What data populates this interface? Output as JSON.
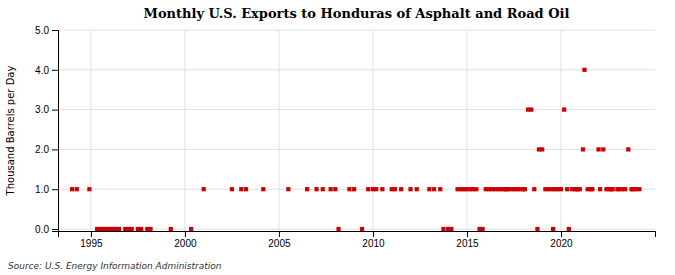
{
  "chart_data": {
    "type": "scatter",
    "title": "Monthly U.S. Exports to Honduras of Asphalt and Road Oil",
    "ylabel": "Thousand Barrels per Day",
    "source": "Source: U.S. Energy Information Administration",
    "color": "#cc0000",
    "marker": "square",
    "grid": true,
    "xlim": [
      1993.25,
      2025.0
    ],
    "ylim": [
      -0.05,
      5.0
    ],
    "xticks": [
      1995,
      2000,
      2005,
      2010,
      2015,
      2020
    ],
    "yticks": [
      {
        "value": 0.0,
        "label": "0.0"
      },
      {
        "value": 1.0,
        "label": "1.0"
      },
      {
        "value": 2.0,
        "label": "2.0"
      },
      {
        "value": 3.0,
        "label": "3.0"
      },
      {
        "value": 4.0,
        "label": "4.0"
      },
      {
        "value": 5.0,
        "label": "5.0"
      }
    ],
    "x": [
      1994.0,
      1994.25,
      1994.92,
      1995.33,
      1995.5,
      1995.67,
      1995.83,
      1996.0,
      1996.17,
      1996.33,
      1996.5,
      1996.83,
      1997.0,
      1997.17,
      1997.5,
      1997.67,
      1998.0,
      1998.17,
      1999.25,
      2000.33,
      2001.0,
      2002.5,
      2003.0,
      2003.25,
      2004.17,
      2005.5,
      2006.5,
      2007.0,
      2007.33,
      2007.75,
      2008.0,
      2008.17,
      2008.75,
      2009.0,
      2009.42,
      2009.75,
      2010.0,
      2010.17,
      2010.5,
      2011.0,
      2011.17,
      2011.5,
      2012.0,
      2012.33,
      2013.0,
      2013.25,
      2013.58,
      2013.75,
      2014.0,
      2014.17,
      2014.5,
      2014.67,
      2014.83,
      2015.0,
      2015.17,
      2015.33,
      2015.5,
      2015.67,
      2015.83,
      2016.0,
      2016.17,
      2016.33,
      2016.5,
      2016.67,
      2016.83,
      2017.0,
      2017.08,
      2017.17,
      2017.33,
      2017.5,
      2017.67,
      2017.83,
      2018.0,
      2018.08,
      2018.25,
      2018.42,
      2018.58,
      2018.75,
      2018.83,
      2019.0,
      2019.17,
      2019.33,
      2019.5,
      2019.58,
      2019.67,
      2019.83,
      2020.0,
      2020.17,
      2020.33,
      2020.42,
      2020.58,
      2020.75,
      2020.83,
      2020.92,
      2021.0,
      2021.17,
      2021.25,
      2021.42,
      2021.58,
      2021.67,
      2022.0,
      2022.08,
      2022.25,
      2022.42,
      2022.58,
      2022.67,
      2022.75,
      2023.0,
      2023.08,
      2023.25,
      2023.42,
      2023.58,
      2023.75,
      2023.83,
      2024.0,
      2024.17
    ],
    "values": [
      1.0,
      1.0,
      1.0,
      0.0,
      0.0,
      0.0,
      0.0,
      0.0,
      0.0,
      0.0,
      0.0,
      0.0,
      0.0,
      0.0,
      0.0,
      0.0,
      0.0,
      0.0,
      0.0,
      0.0,
      1.0,
      1.0,
      1.0,
      1.0,
      1.0,
      1.0,
      1.0,
      1.0,
      1.0,
      1.0,
      1.0,
      0.0,
      1.0,
      1.0,
      0.0,
      1.0,
      1.0,
      1.0,
      1.0,
      1.0,
      1.0,
      1.0,
      1.0,
      1.0,
      1.0,
      1.0,
      1.0,
      0.0,
      0.0,
      0.0,
      1.0,
      1.0,
      1.0,
      1.0,
      1.0,
      1.0,
      1.0,
      0.0,
      0.0,
      1.0,
      1.0,
      1.0,
      1.0,
      1.0,
      1.0,
      1.0,
      1.0,
      1.0,
      1.0,
      1.0,
      1.0,
      1.0,
      1.0,
      1.0,
      3.0,
      3.0,
      1.0,
      0.0,
      2.0,
      2.0,
      1.0,
      1.0,
      1.0,
      0.0,
      1.0,
      1.0,
      1.0,
      3.0,
      1.0,
      0.0,
      1.0,
      1.0,
      1.0,
      1.0,
      1.0,
      2.0,
      4.0,
      1.0,
      1.0,
      1.0,
      2.0,
      1.0,
      2.0,
      1.0,
      1.0,
      1.0,
      1.0,
      1.0,
      1.0,
      1.0,
      1.0,
      2.0,
      1.0,
      1.0,
      1.0,
      1.0
    ]
  }
}
